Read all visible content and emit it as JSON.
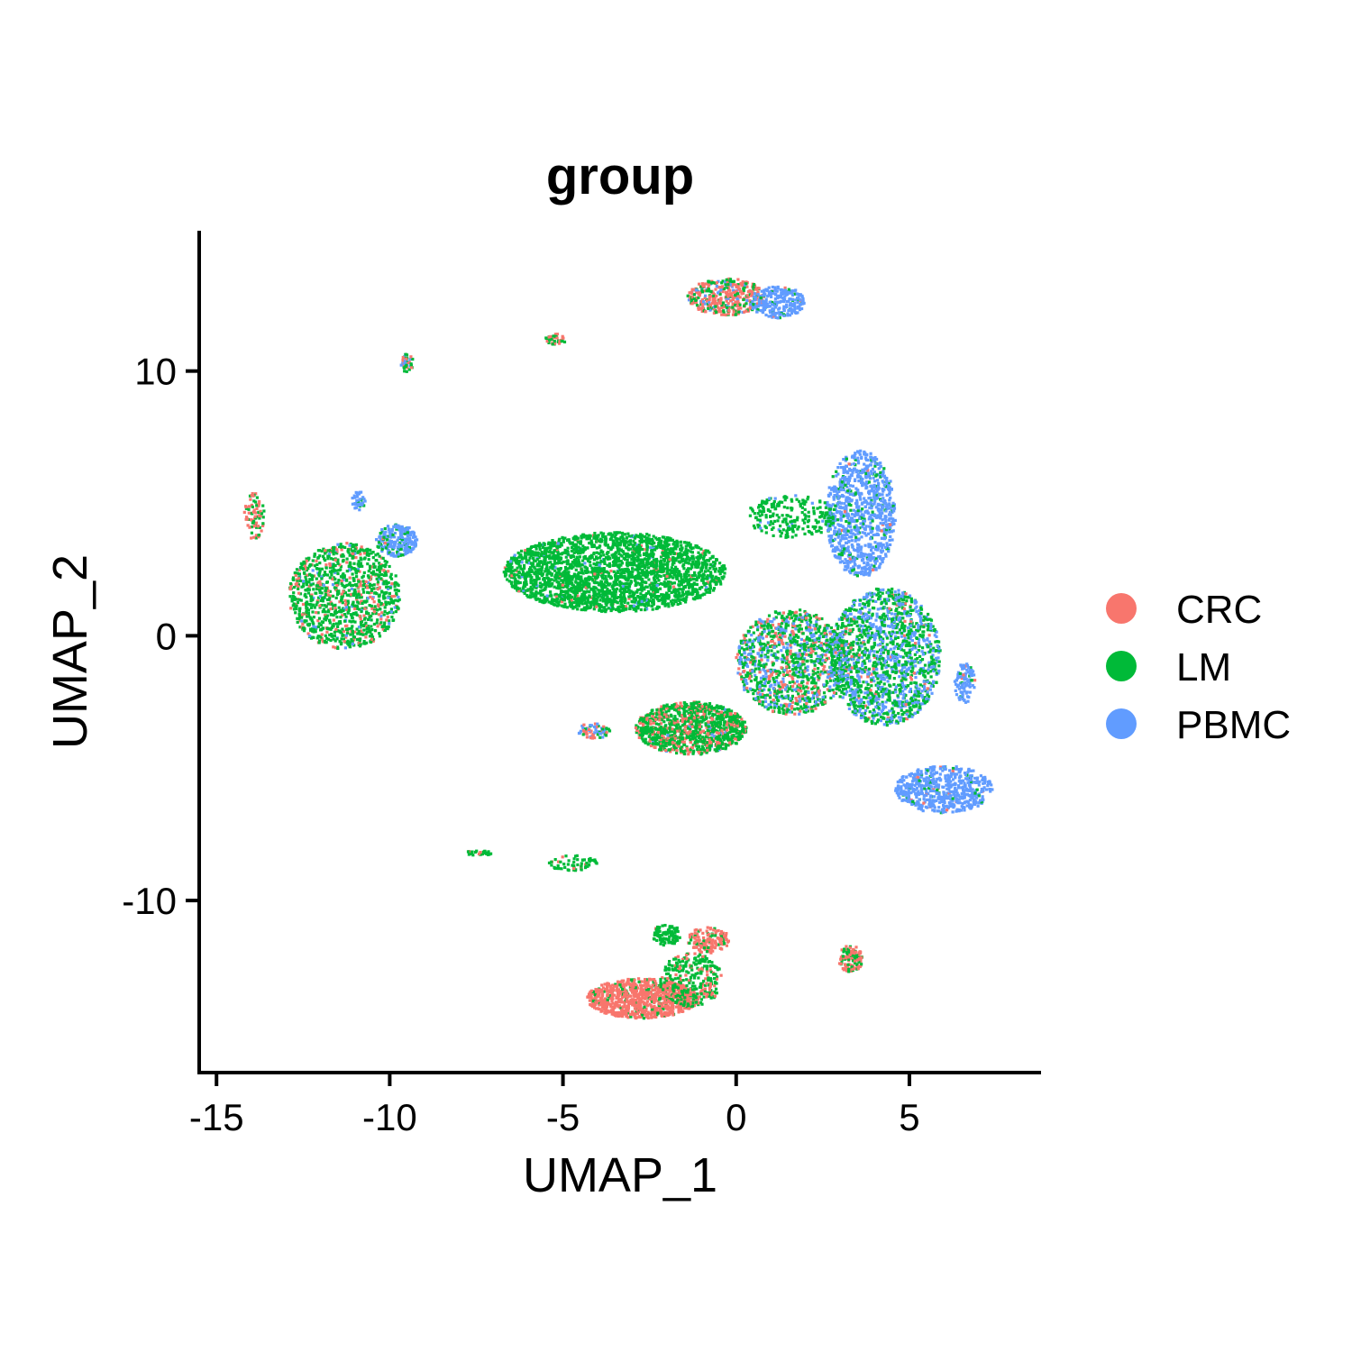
{
  "chart_data": {
    "type": "scatter",
    "title": "group",
    "xlabel": "UMAP_1",
    "ylabel": "UMAP_2",
    "xlim": [
      -15.5,
      8.8
    ],
    "ylim": [
      -16.5,
      15.3
    ],
    "x_ticks": [
      -15,
      -10,
      -5,
      0,
      5
    ],
    "y_ticks": [
      -10,
      0,
      10
    ],
    "x_tick_labels": [
      "-15",
      "-10",
      "-5",
      "0",
      "5"
    ],
    "y_tick_labels": [
      "-10",
      "0",
      "10"
    ],
    "grid": false,
    "legend_position": "right",
    "series": [
      {
        "name": "CRC",
        "color": "#F8766D"
      },
      {
        "name": "LM",
        "color": "#00BA38"
      },
      {
        "name": "PBMC",
        "color": "#619CFF"
      }
    ],
    "clusters": [
      {
        "x": -11.3,
        "y": 1.5,
        "rx": 1.6,
        "ry": 2.0,
        "n": 1100,
        "mix": [
          0.18,
          0.77,
          0.05
        ]
      },
      {
        "x": -9.8,
        "y": 3.6,
        "rx": 0.6,
        "ry": 0.6,
        "n": 240,
        "mix": [
          0.02,
          0.15,
          0.83
        ]
      },
      {
        "x": -10.9,
        "y": 5.1,
        "rx": 0.2,
        "ry": 0.35,
        "n": 40,
        "mix": [
          0.0,
          0.1,
          0.9
        ]
      },
      {
        "x": -13.9,
        "y": 4.5,
        "rx": 0.3,
        "ry": 0.9,
        "n": 80,
        "mix": [
          0.5,
          0.5,
          0.0
        ]
      },
      {
        "x": -3.5,
        "y": 2.4,
        "rx": 3.2,
        "ry": 1.5,
        "n": 2600,
        "mix": [
          0.03,
          0.95,
          0.02
        ]
      },
      {
        "x": -1.3,
        "y": -3.5,
        "rx": 1.6,
        "ry": 1.0,
        "n": 1100,
        "mix": [
          0.28,
          0.7,
          0.02
        ]
      },
      {
        "x": 1.6,
        "y": -1.0,
        "rx": 1.6,
        "ry": 2.0,
        "n": 1200,
        "mix": [
          0.2,
          0.55,
          0.25
        ]
      },
      {
        "x": 4.3,
        "y": -0.8,
        "rx": 1.6,
        "ry": 2.6,
        "n": 1600,
        "mix": [
          0.05,
          0.55,
          0.4
        ]
      },
      {
        "x": 3.6,
        "y": 4.6,
        "rx": 1.0,
        "ry": 2.4,
        "n": 950,
        "mix": [
          0.01,
          0.12,
          0.87
        ]
      },
      {
        "x": 6.0,
        "y": -5.8,
        "rx": 1.4,
        "ry": 0.9,
        "n": 600,
        "mix": [
          0.03,
          0.05,
          0.92
        ]
      },
      {
        "x": 6.6,
        "y": -1.8,
        "rx": 0.3,
        "ry": 0.8,
        "n": 100,
        "mix": [
          0.05,
          0.1,
          0.85
        ]
      },
      {
        "x": 1.6,
        "y": 4.5,
        "rx": 1.3,
        "ry": 0.8,
        "n": 220,
        "mix": [
          0.0,
          0.95,
          0.05
        ]
      },
      {
        "x": -0.3,
        "y": 12.8,
        "rx": 1.1,
        "ry": 0.7,
        "n": 420,
        "mix": [
          0.62,
          0.25,
          0.13
        ]
      },
      {
        "x": 1.2,
        "y": 12.6,
        "rx": 0.8,
        "ry": 0.6,
        "n": 260,
        "mix": [
          0.02,
          0.08,
          0.9
        ]
      },
      {
        "x": -2.7,
        "y": -13.7,
        "rx": 1.6,
        "ry": 0.75,
        "n": 900,
        "mix": [
          0.88,
          0.12,
          0.0
        ]
      },
      {
        "x": -1.3,
        "y": -13.0,
        "rx": 0.9,
        "ry": 1.0,
        "n": 300,
        "mix": [
          0.25,
          0.75,
          0.0
        ]
      },
      {
        "x": -0.8,
        "y": -11.5,
        "rx": 0.6,
        "ry": 0.5,
        "n": 150,
        "mix": [
          0.8,
          0.2,
          0.0
        ]
      },
      {
        "x": -2.0,
        "y": -11.3,
        "rx": 0.4,
        "ry": 0.4,
        "n": 90,
        "mix": [
          0.1,
          0.9,
          0.0
        ]
      },
      {
        "x": 3.3,
        "y": -12.2,
        "rx": 0.35,
        "ry": 0.5,
        "n": 120,
        "mix": [
          0.75,
          0.25,
          0.0
        ]
      },
      {
        "x": -5.2,
        "y": 11.2,
        "rx": 0.3,
        "ry": 0.2,
        "n": 40,
        "mix": [
          0.5,
          0.5,
          0.0
        ]
      },
      {
        "x": -9.5,
        "y": 10.3,
        "rx": 0.2,
        "ry": 0.35,
        "n": 40,
        "mix": [
          0.2,
          0.5,
          0.3
        ]
      },
      {
        "x": -4.1,
        "y": -3.6,
        "rx": 0.5,
        "ry": 0.3,
        "n": 70,
        "mix": [
          0.4,
          0.3,
          0.3
        ]
      },
      {
        "x": -2.6,
        "y": -3.6,
        "rx": 0.2,
        "ry": 0.1,
        "n": 20,
        "mix": [
          0.0,
          1.0,
          0.0
        ]
      },
      {
        "x": -7.4,
        "y": -8.2,
        "rx": 0.4,
        "ry": 0.1,
        "n": 30,
        "mix": [
          0.1,
          0.9,
          0.0
        ]
      },
      {
        "x": -4.7,
        "y": -8.6,
        "rx": 0.7,
        "ry": 0.3,
        "n": 60,
        "mix": [
          0.1,
          0.9,
          0.0
        ]
      }
    ]
  }
}
